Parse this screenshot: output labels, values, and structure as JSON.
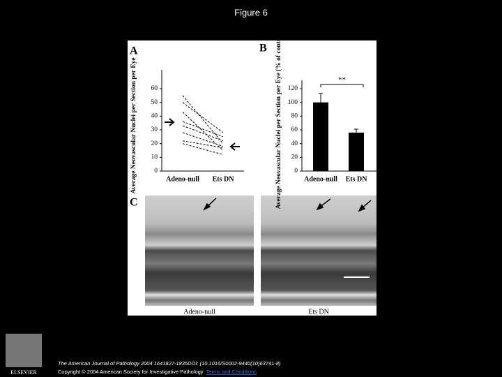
{
  "title": "Figure 6",
  "chart_data": [
    {
      "type": "line",
      "panel_label": "A",
      "y_label": "Average Neovascular Nuclei per Section per Eye",
      "categories": [
        "Adeno-null",
        "Ets DN"
      ],
      "color": "#000000",
      "line_style": "dashed",
      "series": [
        {
          "values": [
            55,
            20
          ]
        },
        {
          "values": [
            50,
            28
          ]
        },
        {
          "values": [
            43,
            15
          ]
        },
        {
          "values": [
            36,
            25
          ]
        },
        {
          "values": [
            33,
            22
          ]
        },
        {
          "values": [
            28,
            18
          ]
        },
        {
          "values": [
            22,
            17
          ]
        },
        {
          "values": [
            20,
            12
          ]
        }
      ],
      "ylim": [
        0,
        60
      ],
      "yticks": [
        0,
        10,
        20,
        30,
        40,
        50,
        60
      ]
    },
    {
      "type": "bar",
      "panel_label": "B",
      "y_label": "Average Neovascular Nuclei per Section per Eye (% of control)",
      "categories": [
        "Adeno-null",
        "Ets DN"
      ],
      "values": [
        100,
        56
      ],
      "errors": [
        13,
        5
      ],
      "color": "#000000",
      "annotation": "**",
      "ylim": [
        0,
        120
      ],
      "yticks": [
        0,
        20,
        40,
        60,
        80,
        100,
        120
      ]
    }
  ],
  "panel_c": {
    "label": "C",
    "captions": [
      "Adeno-null",
      "Ets DN"
    ]
  },
  "footer": {
    "citation": "The American Journal of Pathology 2004 1641827-1835DOI: (10.1016/S0002-9440(10)63741-8)",
    "copyright": "Copyright © 2004 American Society for Investigative Pathology",
    "link": "Terms and Conditions"
  },
  "logo": "ELSEVIER"
}
